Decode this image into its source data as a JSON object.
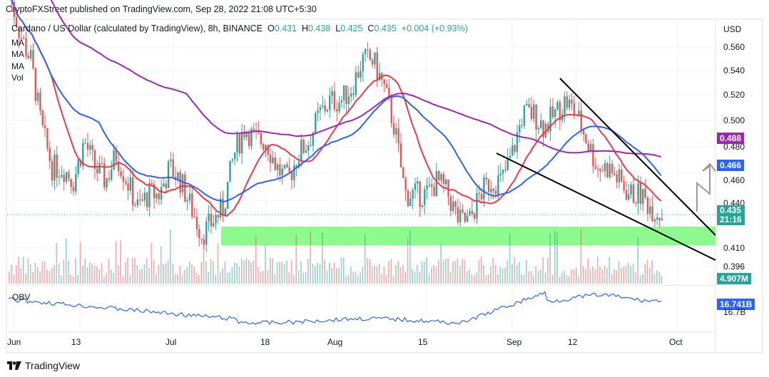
{
  "header": {
    "published": "CryptoFXStreet published on TradingView.com, Sep 28, 2022 21:08 UTC+5:30"
  },
  "legend": {
    "symbol": "Cardano / US Dollar (calculated by TradingView), 8h, BINANCE",
    "open_label": "O",
    "open": "0.431",
    "high_label": "H",
    "high": "0.438",
    "low_label": "L",
    "low": "0.425",
    "close_label": "C",
    "close": "0.435",
    "change": "+0.004 (+0.93%)",
    "indicators": [
      "MA",
      "MA",
      "MA",
      "Vol"
    ]
  },
  "price_axis": {
    "currency": "USD",
    "ticks": [
      "0.560",
      "0.540",
      "0.520",
      "0.500",
      "0.480",
      "0.460",
      "0.440",
      "0.410",
      "0.396"
    ],
    "tags": {
      "ma200": {
        "value": "0.488",
        "color": "#9c27b0"
      },
      "ma100": {
        "value": "0.466",
        "color": "#2962ff"
      },
      "last": {
        "value": "0.435",
        "countdown": "21:16",
        "color": "#26a69a"
      },
      "volume": {
        "value": "4.907M",
        "color": "#26a69a"
      }
    }
  },
  "obv": {
    "label": "OBV",
    "tag": {
      "value": "16.741B",
      "color": "#2962ff"
    },
    "tick": "16.7B"
  },
  "time_axis": [
    "Jun",
    "13",
    "Jul",
    "18",
    "Aug",
    "15",
    "Sep",
    "12",
    "Oct"
  ],
  "footer": {
    "brand": "TradingView"
  },
  "colors": {
    "up": "#26a69a",
    "down": "#ef5350",
    "ma50": "#f23645",
    "ma100": "#2962ff",
    "ma200": "#9c27b0",
    "zone": "#8cfa8c"
  },
  "chart_data": {
    "type": "candlestick",
    "title": "Cardano / US Dollar (calculated by TradingView), 8h, BINANCE",
    "ylabel": "USD",
    "ylim": [
      0.396,
      0.575
    ],
    "x_ticks": [
      "Jun",
      "13",
      "Jul",
      "18",
      "Aug",
      "15",
      "Sep",
      "12",
      "Oct"
    ],
    "last": {
      "open": 0.431,
      "high": 0.438,
      "low": 0.425,
      "close": 0.435,
      "change": 0.004,
      "change_pct": 0.93
    },
    "moving_averages": [
      {
        "name": "MA (red, ~50)",
        "current": 0.461
      },
      {
        "name": "MA (blue, ~100)",
        "current": 0.466
      },
      {
        "name": "MA (purple, ~200)",
        "current": 0.488
      }
    ],
    "annotations": [
      {
        "type": "support_zone",
        "from": 0.412,
        "to": 0.426,
        "color": "#8cfa8c"
      },
      {
        "type": "falling_wedge_upper",
        "from_price": 0.534,
        "to_price": 0.421,
        "label": "descending resistance"
      },
      {
        "type": "falling_wedge_lower",
        "from_price": 0.476,
        "to_price": 0.402,
        "label": "descending support"
      },
      {
        "type": "breakout_arrow",
        "direction": "up",
        "target": 0.466
      }
    ],
    "price_path": [
      0.6,
      0.57,
      0.55,
      0.5,
      0.47,
      0.47,
      0.46,
      0.49,
      0.47,
      0.46,
      0.48,
      0.46,
      0.44,
      0.45,
      0.45,
      0.47,
      0.46,
      0.44,
      0.42,
      0.43,
      0.44,
      0.48,
      0.5,
      0.49,
      0.49,
      0.47,
      0.46,
      0.48,
      0.49,
      0.51,
      0.52,
      0.52,
      0.53,
      0.55,
      0.55,
      0.53,
      0.5,
      0.45,
      0.45,
      0.45,
      0.46,
      0.45,
      0.43,
      0.43,
      0.45,
      0.46,
      0.46,
      0.48,
      0.51,
      0.51,
      0.5,
      0.51,
      0.52,
      0.51,
      0.49,
      0.47,
      0.47,
      0.46,
      0.45,
      0.45,
      0.44,
      0.435
    ],
    "volume_last": "4.907M",
    "obv_last": "16.741B"
  }
}
